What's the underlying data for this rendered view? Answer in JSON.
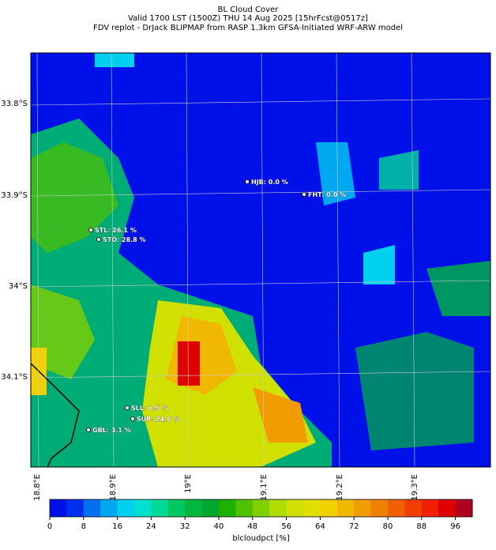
{
  "title": "BL Cloud Cover",
  "subtitle": "Valid 1700 LST (1500Z) THU 14 Aug 2025 [15hrFcst@0517z]",
  "source": "FDV replot - DrJack BLIPMAP from RASP 1.3km GFSA-Initiated WRF-ARW model",
  "lat_labels": [
    "33.8°S",
    "33.9°S",
    "34°S",
    "34.1°S"
  ],
  "lon_labels": [
    "18.8°E",
    "18.9°E",
    "19°E",
    "19.1°E",
    "19.2°E",
    "19.3°E"
  ],
  "stations": [
    "HJB: 0.0 %",
    "FHT: 0.0 %",
    "STL: 26.1 %",
    "STO: 28.8 %",
    "SLL: 6.5 %",
    "SUP: 24.6 %",
    "GBL: 3.1 %"
  ],
  "colorbar": {
    "label": "blcloudpct [%]",
    "lim": [
      0,
      100
    ],
    "ticks": [
      0,
      8,
      16,
      24,
      32,
      40,
      48,
      56,
      64,
      72,
      80,
      88,
      96
    ],
    "colors": [
      "#0010e8",
      "#0030ee",
      "#0070ee",
      "#00a8f0",
      "#00d0f0",
      "#00e0d0",
      "#00d898",
      "#00c860",
      "#00b840",
      "#00a830",
      "#20b000",
      "#50c000",
      "#80d000",
      "#b0dc00",
      "#d0e000",
      "#e0e000",
      "#f0d000",
      "#f0b800",
      "#f09c00",
      "#f08000",
      "#f06000",
      "#f04000",
      "#f02000",
      "#e00000",
      "#b00020"
    ]
  }
}
